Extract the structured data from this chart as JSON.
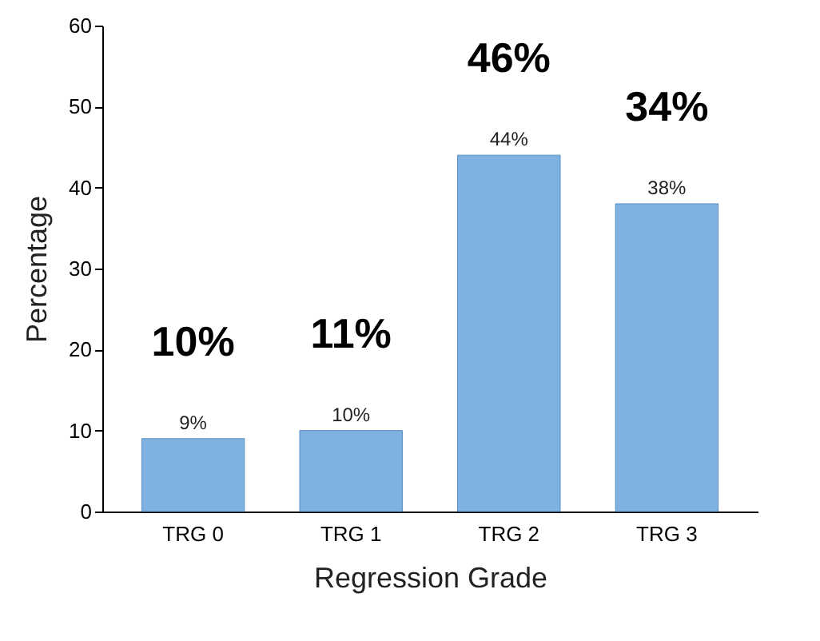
{
  "chart_data": {
    "type": "bar",
    "xlabel": "Regression Grade",
    "ylabel": "Percentage",
    "categories": [
      "TRG 0",
      "TRG 1",
      "TRG 2",
      "TRG 3"
    ],
    "values": [
      9,
      10,
      44,
      38
    ],
    "value_labels": [
      "9%",
      "10%",
      "44%",
      "38%"
    ],
    "color": "#7fb1e1",
    "ylim": [
      0,
      60
    ],
    "yticks": [
      0,
      10,
      20,
      30,
      40,
      50,
      60
    ],
    "annotations": [
      "10%",
      "11%",
      "46%",
      "34%"
    ]
  }
}
